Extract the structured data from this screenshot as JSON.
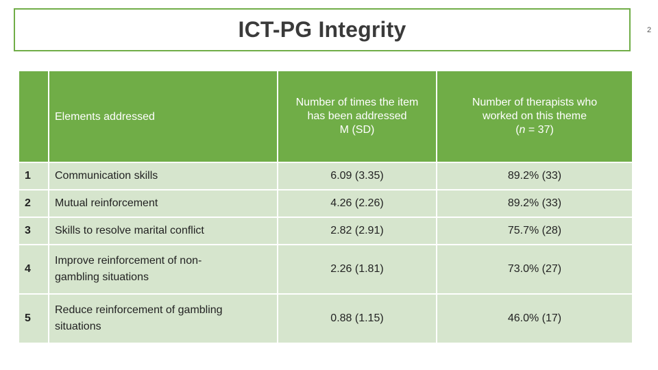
{
  "slide": {
    "title": "ICT-PG Integrity",
    "page_number": "2"
  },
  "table": {
    "headers": {
      "index": "",
      "elements": "Elements addressed",
      "times_line1": "Number of times the item",
      "times_line2": "has been addressed",
      "times_line3": "M (SD)",
      "therapists_line1": "Number of therapists who",
      "therapists_line2": "worked on this theme",
      "therapists_n_prefix": "(",
      "therapists_n_italic": "n",
      "therapists_n_suffix": " = 37)"
    },
    "rows": [
      {
        "index": "1",
        "element": "Communication skills",
        "times": "6.09 (3.35)",
        "therapists": "89.2% (33)"
      },
      {
        "index": "2",
        "element": "Mutual reinforcement",
        "times": "4.26 (2.26)",
        "therapists": "89.2% (33)"
      },
      {
        "index": "3",
        "element": "Skills to resolve marital conflict",
        "times": "2.82 (2.91)",
        "therapists": "75.7% (28)"
      },
      {
        "index": "4",
        "element_line1": "Improve reinforcement of non-",
        "element_line2": "gambling situations",
        "times": "2.26 (1.81)",
        "therapists": "73.0% (27)"
      },
      {
        "index": "5",
        "element_line1": "Reduce reinforcement of gambling",
        "element_line2": "situations",
        "times": "0.88 (1.15)",
        "therapists": "46.0% (17)"
      }
    ]
  },
  "colors": {
    "header_green": "#70ad47",
    "row_light_green": "#d6e5cd",
    "title_border": "#70ad47"
  }
}
